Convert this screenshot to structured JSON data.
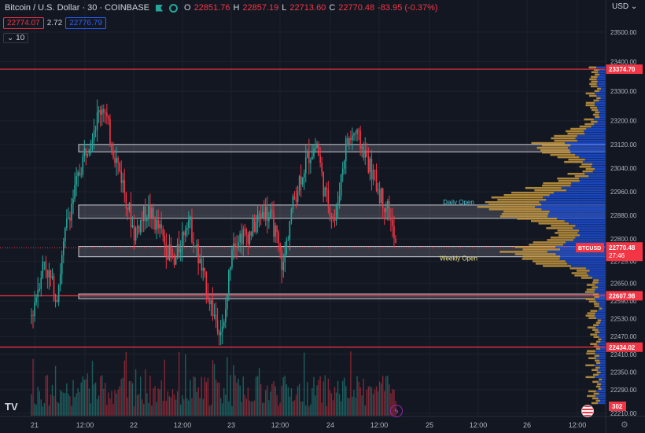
{
  "header": {
    "symbol": "Bitcoin / U.S. Dollar · 30 · COINBASE",
    "o_label": "O",
    "o_value": "22851.76",
    "h_label": "H",
    "h_value": "22857.19",
    "l_label": "L",
    "l_value": "22713.60",
    "c_label": "C",
    "c_value": "22770.48",
    "change": "-83.95 (-0.37%)",
    "bid": "22774.07",
    "spread": "2.72",
    "ask": "22776.79",
    "indicator": "10",
    "currency": "USD"
  },
  "icons": [
    "flag-icon",
    "eye-icon",
    "tradingview-logo-icon",
    "lightning-icon",
    "us-flag-icon",
    "gear-icon"
  ],
  "colors": {
    "up": "#26a69a",
    "down": "#f23645",
    "volume_profile_blue": "#2962ff",
    "volume_profile_gold": "#e0b04a",
    "background": "#131722"
  },
  "chart_data": {
    "type": "candlestick",
    "ylim": [
      22210,
      23545
    ],
    "y_ticks": [
      23500,
      23400,
      23300,
      23200,
      23120,
      23040,
      22960,
      22880,
      22800,
      22725,
      22650,
      22590,
      22530,
      22470,
      22410,
      22350,
      22290,
      22210
    ],
    "x_ticks": [
      "21",
      "12:00",
      "22",
      "12:00",
      "23",
      "12:00",
      "24",
      "12:00",
      "25",
      "12:00",
      "26",
      "12:00"
    ],
    "price_levels": [
      {
        "label": "23374.70",
        "value": 23374.7
      },
      {
        "label": "22607.98",
        "value": 22607.98
      },
      {
        "label": "22434.02",
        "value": 22434.02
      }
    ],
    "current_price": {
      "symbol": "BTCUSD",
      "value": 22770.48,
      "label": "22770.48",
      "countdown": "27:46"
    },
    "zones": [
      {
        "from": 23095,
        "to": 23120
      },
      {
        "from": 22870,
        "to": 22915
      },
      {
        "from": 22740,
        "to": 22775
      },
      {
        "from": 22598,
        "to": 22614
      }
    ],
    "annotations": [
      {
        "text": "Daily Open",
        "value": 22918
      },
      {
        "text": "Weekly Open",
        "value": 22733
      }
    ],
    "volume_label": "302"
  }
}
